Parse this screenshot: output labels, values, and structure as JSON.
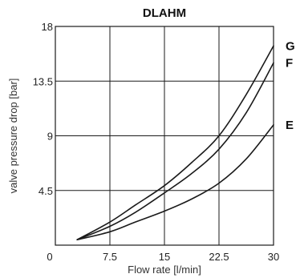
{
  "chart_data": {
    "type": "line",
    "title": "DLAHM",
    "xlabel": "Flow rate [l/min]",
    "ylabel": "valve pressure drop [bar]",
    "xlim": [
      0,
      30
    ],
    "ylim": [
      0,
      18
    ],
    "xticks": [
      "0",
      "7.5",
      "15",
      "22.5",
      "30"
    ],
    "yticks": [
      "4.5",
      "9",
      "13.5",
      "18"
    ],
    "grid": true,
    "series": [
      {
        "name": "G",
        "x": [
          3,
          7.5,
          11,
          15,
          18.75,
          22.5,
          26.25,
          30
        ],
        "y": [
          0.45,
          1.9,
          3.3,
          4.9,
          6.8,
          9.0,
          12.4,
          16.4
        ]
      },
      {
        "name": "F",
        "x": [
          3,
          7.5,
          11,
          15,
          18.75,
          22.5,
          26.25,
          30
        ],
        "y": [
          0.45,
          1.55,
          2.7,
          4.3,
          5.9,
          7.9,
          10.9,
          15.0
        ]
      },
      {
        "name": "E",
        "x": [
          3,
          7.5,
          11,
          15,
          18.75,
          22.5,
          26.25,
          30
        ],
        "y": [
          0.45,
          1.1,
          1.9,
          2.8,
          3.8,
          5.1,
          7.1,
          9.9
        ]
      }
    ],
    "colors": {
      "line": "#1a1a1a",
      "grid": "#1a1a1a",
      "text": "#222222"
    }
  }
}
